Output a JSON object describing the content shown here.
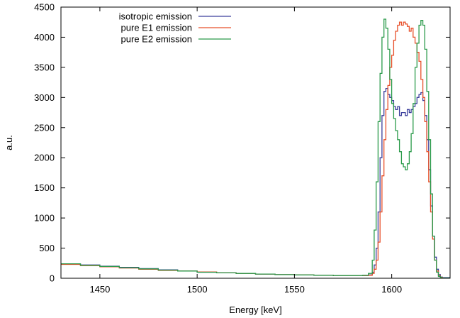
{
  "chart_data": {
    "type": "line",
    "title": "",
    "xlabel": "Energy [keV]",
    "ylabel": "a.u.",
    "xlim": [
      1430,
      1630
    ],
    "ylim": [
      0,
      4500
    ],
    "xticks": [
      1450,
      1500,
      1550,
      1600
    ],
    "yticks": [
      0,
      500,
      1000,
      1500,
      2000,
      2500,
      3000,
      3500,
      4000,
      4500
    ],
    "grid": false,
    "legend_position": "top-left",
    "step": true,
    "series": [
      {
        "name": "isotropic emission",
        "color": "#3b3f9c",
        "x": [
          1430,
          1440,
          1450,
          1460,
          1470,
          1480,
          1490,
          1500,
          1510,
          1520,
          1530,
          1540,
          1550,
          1560,
          1570,
          1580,
          1585,
          1588,
          1590,
          1591,
          1592,
          1593,
          1594,
          1595,
          1596,
          1597,
          1598,
          1599,
          1600,
          1601,
          1602,
          1603,
          1604,
          1605,
          1606,
          1607,
          1608,
          1609,
          1610,
          1611,
          1612,
          1613,
          1614,
          1615,
          1616,
          1617,
          1618,
          1619,
          1620,
          1621,
          1622,
          1623,
          1624,
          1625,
          1626,
          1630
        ],
        "y": [
          240,
          220,
          200,
          180,
          160,
          140,
          120,
          100,
          90,
          80,
          70,
          60,
          55,
          50,
          45,
          45,
          45,
          55,
          100,
          220,
          500,
          1100,
          2000,
          2700,
          3100,
          3150,
          3050,
          3000,
          2950,
          2850,
          2800,
          2850,
          2700,
          2750,
          2750,
          2700,
          2800,
          2750,
          2800,
          2850,
          2900,
          3000,
          3050,
          3080,
          2950,
          2700,
          2300,
          1800,
          1200,
          700,
          350,
          150,
          60,
          20,
          10,
          5
        ]
      },
      {
        "name": "pure E1 emission",
        "color": "#e8502a",
        "x": [
          1430,
          1440,
          1450,
          1460,
          1470,
          1480,
          1490,
          1500,
          1510,
          1520,
          1530,
          1540,
          1550,
          1560,
          1570,
          1580,
          1585,
          1588,
          1590,
          1591,
          1592,
          1593,
          1594,
          1595,
          1596,
          1597,
          1598,
          1599,
          1600,
          1601,
          1602,
          1603,
          1604,
          1605,
          1606,
          1607,
          1608,
          1609,
          1610,
          1611,
          1612,
          1613,
          1614,
          1615,
          1616,
          1617,
          1618,
          1619,
          1620,
          1621,
          1622,
          1623,
          1624,
          1625,
          1626,
          1630
        ],
        "y": [
          230,
          210,
          190,
          170,
          150,
          130,
          120,
          105,
          90,
          80,
          70,
          60,
          55,
          50,
          45,
          45,
          45,
          50,
          80,
          150,
          300,
          600,
          1100,
          1700,
          2300,
          2800,
          3200,
          3500,
          3700,
          3950,
          4100,
          4200,
          4250,
          4200,
          4250,
          4220,
          4180,
          4100,
          4150,
          4000,
          3900,
          3750,
          3600,
          3300,
          3000,
          2600,
          2100,
          1600,
          1100,
          650,
          300,
          120,
          40,
          15,
          5,
          2
        ]
      },
      {
        "name": "pure E2 emission",
        "color": "#2a9a4a",
        "x": [
          1430,
          1440,
          1450,
          1460,
          1470,
          1480,
          1490,
          1500,
          1510,
          1520,
          1530,
          1540,
          1550,
          1560,
          1570,
          1580,
          1585,
          1588,
          1590,
          1591,
          1592,
          1593,
          1594,
          1595,
          1596,
          1597,
          1598,
          1599,
          1600,
          1601,
          1602,
          1603,
          1604,
          1605,
          1606,
          1607,
          1608,
          1609,
          1610,
          1611,
          1612,
          1613,
          1614,
          1615,
          1616,
          1617,
          1618,
          1619,
          1620,
          1621,
          1622,
          1623,
          1624,
          1625,
          1626,
          1630
        ],
        "y": [
          240,
          215,
          195,
          175,
          155,
          135,
          120,
          100,
          90,
          80,
          70,
          60,
          55,
          50,
          45,
          45,
          50,
          80,
          300,
          800,
          1600,
          2600,
          3400,
          4000,
          4300,
          4150,
          3800,
          3300,
          2900,
          2650,
          2450,
          2300,
          2100,
          1900,
          1850,
          1800,
          1900,
          2100,
          2400,
          2900,
          3500,
          3900,
          4200,
          4280,
          4200,
          3800,
          3100,
          2300,
          1400,
          700,
          300,
          100,
          30,
          10,
          5,
          2
        ]
      }
    ]
  }
}
